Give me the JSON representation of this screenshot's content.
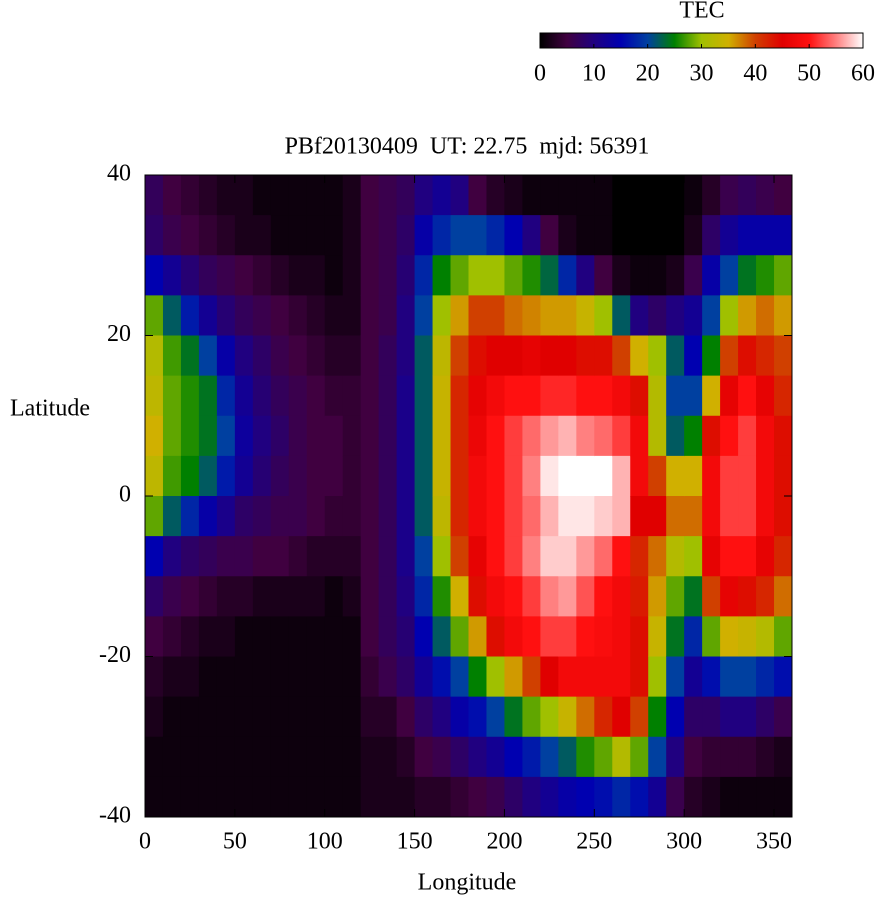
{
  "chart_data": {
    "type": "heatmap",
    "title": "PBf20130409  UT: 22.75  mjd: 56391",
    "xlabel": "Longitude",
    "ylabel": "Latitude",
    "xbins": [
      0,
      10,
      20,
      30,
      40,
      50,
      60,
      70,
      80,
      90,
      100,
      110,
      120,
      130,
      140,
      150,
      160,
      170,
      180,
      190,
      200,
      210,
      220,
      230,
      240,
      250,
      260,
      270,
      280,
      290,
      300,
      310,
      320,
      330,
      340,
      350,
      360
    ],
    "ybins": [
      40,
      35,
      30,
      25,
      20,
      15,
      10,
      5,
      0,
      -5,
      -10,
      -15,
      -20,
      -25,
      -30,
      -35,
      -40
    ],
    "xlim": [
      0,
      360
    ],
    "ylim": [
      -40,
      40
    ],
    "xticks": [
      0,
      50,
      100,
      150,
      200,
      250,
      300,
      350
    ],
    "yticks": [
      -40,
      -20,
      0,
      20,
      40
    ],
    "values": [
      [
        7,
        8,
        15,
        28,
        32,
        33,
        35,
        33,
        28,
        15,
        8,
        5,
        3,
        2,
        1,
        1
      ],
      [
        5,
        6,
        12,
        22,
        27,
        28,
        28,
        27,
        22,
        10,
        6,
        4,
        2,
        1,
        1,
        1
      ],
      [
        4,
        5,
        9,
        17,
        24,
        26,
        26,
        25,
        18,
        8,
        5,
        3,
        2,
        1,
        1,
        1
      ],
      [
        3,
        4,
        7,
        12,
        20,
        24,
        24,
        22,
        14,
        7,
        4,
        2,
        1,
        1,
        1,
        1
      ],
      [
        2,
        3,
        6,
        9,
        14,
        18,
        20,
        17,
        11,
        6,
        3,
        2,
        1,
        1,
        1,
        1
      ],
      [
        2,
        2,
        5,
        7,
        10,
        12,
        13,
        12,
        8,
        6,
        3,
        1,
        1,
        1,
        1,
        1
      ],
      [
        1,
        2,
        4,
        6,
        8,
        9,
        10,
        9,
        7,
        5,
        2,
        1,
        1,
        1,
        1,
        1
      ],
      [
        1,
        1,
        3,
        5,
        6,
        7,
        8,
        7,
        6,
        5,
        2,
        1,
        1,
        1,
        1,
        1
      ],
      [
        1,
        1,
        2,
        4,
        5,
        6,
        6,
        6,
        6,
        4,
        2,
        1,
        1,
        1,
        1,
        1
      ],
      [
        1,
        1,
        2,
        3,
        4,
        5,
        5,
        5,
        5,
        3,
        2,
        1,
        1,
        1,
        1,
        1
      ],
      [
        1,
        1,
        1,
        2,
        3,
        4,
        5,
        5,
        4,
        3,
        1,
        1,
        1,
        1,
        1,
        1
      ],
      [
        2,
        2,
        2,
        2,
        3,
        4,
        4,
        4,
        4,
        3,
        2,
        1,
        1,
        1,
        1,
        1
      ],
      [
        5,
        5,
        5,
        5,
        5,
        5,
        5,
        5,
        5,
        5,
        5,
        5,
        4,
        3,
        2,
        2
      ],
      [
        6,
        6,
        6,
        6,
        7,
        7,
        7,
        7,
        7,
        7,
        7,
        7,
        6,
        3,
        2,
        2
      ],
      [
        7,
        8,
        9,
        10,
        10,
        11,
        11,
        11,
        11,
        11,
        10,
        9,
        8,
        5,
        3,
        2
      ],
      [
        10,
        14,
        18,
        20,
        22,
        22,
        22,
        22,
        22,
        20,
        18,
        15,
        12,
        8,
        5,
        3
      ],
      [
        12,
        18,
        25,
        30,
        33,
        34,
        34,
        34,
        33,
        30,
        26,
        22,
        16,
        10,
        6,
        3
      ],
      [
        10,
        20,
        28,
        36,
        40,
        42,
        42,
        42,
        42,
        40,
        35,
        28,
        20,
        14,
        8,
        4
      ],
      [
        5,
        20,
        30,
        40,
        44,
        46,
        47,
        48,
        48,
        46,
        44,
        36,
        25,
        16,
        10,
        5
      ],
      [
        3,
        18,
        30,
        40,
        45,
        48,
        50,
        50,
        50,
        50,
        48,
        44,
        30,
        20,
        12,
        6
      ],
      [
        2,
        15,
        28,
        38,
        45,
        50,
        52,
        52,
        52,
        52,
        50,
        48,
        36,
        24,
        15,
        8
      ],
      [
        1,
        10,
        26,
        37,
        46,
        50,
        54,
        55,
        54,
        55,
        52,
        50,
        40,
        28,
        17,
        10
      ],
      [
        1,
        5,
        23,
        36,
        45,
        51,
        56,
        59,
        57,
        58,
        55,
        52,
        45,
        30,
        20,
        12
      ],
      [
        1,
        2,
        18,
        36,
        45,
        51,
        57,
        60,
        59,
        58,
        56,
        52,
        48,
        34,
        22,
        14
      ],
      [
        1,
        1,
        10,
        34,
        44,
        50,
        55,
        60,
        59,
        56,
        53,
        50,
        48,
        38,
        26,
        15
      ],
      [
        1,
        1,
        5,
        30,
        44,
        50,
        54,
        60,
        58,
        54,
        50,
        49,
        48,
        42,
        28,
        16
      ],
      [
        0,
        0,
        2,
        22,
        40,
        48,
        52,
        57,
        57,
        50,
        48,
        48,
        48,
        45,
        32,
        18
      ],
      [
        0,
        0,
        1,
        10,
        35,
        44,
        48,
        48,
        45,
        42,
        43,
        44,
        44,
        40,
        28,
        16
      ],
      [
        0,
        0,
        1,
        8,
        30,
        32,
        32,
        40,
        45,
        38,
        36,
        34,
        30,
        25,
        20,
        12
      ],
      [
        0,
        0,
        2,
        10,
        22,
        20,
        22,
        35,
        38,
        32,
        28,
        24,
        20,
        15,
        10,
        6
      ],
      [
        1,
        2,
        6,
        12,
        15,
        20,
        25,
        35,
        38,
        30,
        24,
        18,
        12,
        8,
        5,
        3
      ],
      [
        3,
        8,
        14,
        20,
        25,
        35,
        44,
        48,
        48,
        46,
        40,
        28,
        16,
        8,
        4,
        2
      ],
      [
        6,
        12,
        20,
        30,
        40,
        46,
        50,
        52,
        52,
        50,
        46,
        35,
        20,
        10,
        4,
        1
      ],
      [
        7,
        14,
        24,
        36,
        44,
        50,
        52,
        52,
        52,
        50,
        44,
        34,
        20,
        10,
        4,
        1
      ],
      [
        6,
        14,
        26,
        38,
        42,
        46,
        48,
        48,
        48,
        46,
        42,
        32,
        18,
        8,
        3,
        1
      ],
      [
        5,
        14,
        28,
        36,
        40,
        42,
        44,
        44,
        44,
        42,
        38,
        28,
        16,
        6,
        2,
        1
      ]
    ],
    "colorbar": {
      "label": "TEC",
      "lim": [
        0,
        60
      ],
      "ticks": [
        0,
        10,
        20,
        30,
        40,
        50,
        60
      ],
      "colormap": [
        "#000000",
        "#400040",
        "#200080",
        "#0000b0",
        "#0040a0",
        "#008000",
        "#a0c000",
        "#d0b000",
        "#d04000",
        "#e00000",
        "#ff1010",
        "#ff8080",
        "#ffffff"
      ]
    }
  }
}
